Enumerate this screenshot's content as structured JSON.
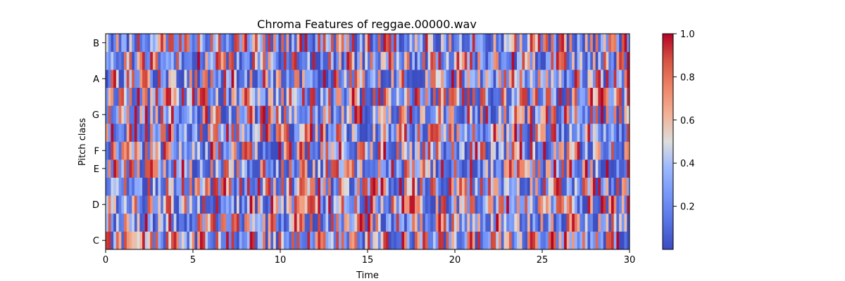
{
  "chart_data": {
    "type": "heatmap",
    "title": "Chroma Features of reggae.00000.wav",
    "xlabel": "Time",
    "ylabel": "Pitch class",
    "xlim": [
      0,
      30
    ],
    "x_ticks": [
      0,
      5,
      10,
      15,
      20,
      25,
      30
    ],
    "pitch_classes": [
      "C",
      "C#",
      "D",
      "D#",
      "E",
      "F",
      "F#",
      "G",
      "G#",
      "A",
      "A#",
      "B"
    ],
    "y_tick_labels": [
      {
        "label": "C",
        "pitch_index": 0
      },
      {
        "label": "D",
        "pitch_index": 2
      },
      {
        "label": "E",
        "pitch_index": 4
      },
      {
        "label": "F",
        "pitch_index": 5
      },
      {
        "label": "G",
        "pitch_index": 7
      },
      {
        "label": "A",
        "pitch_index": 9
      },
      {
        "label": "B",
        "pitch_index": 11
      }
    ],
    "colormap": "coolwarm",
    "colorbar": {
      "range": [
        0.0,
        1.0
      ],
      "ticks": [
        "0.2",
        "0.4",
        "0.6",
        "0.8",
        "1.0"
      ],
      "colors": {
        "low": "#3b4cc0",
        "mid": "#dddddd",
        "high": "#b40426"
      }
    },
    "grid": false
  }
}
